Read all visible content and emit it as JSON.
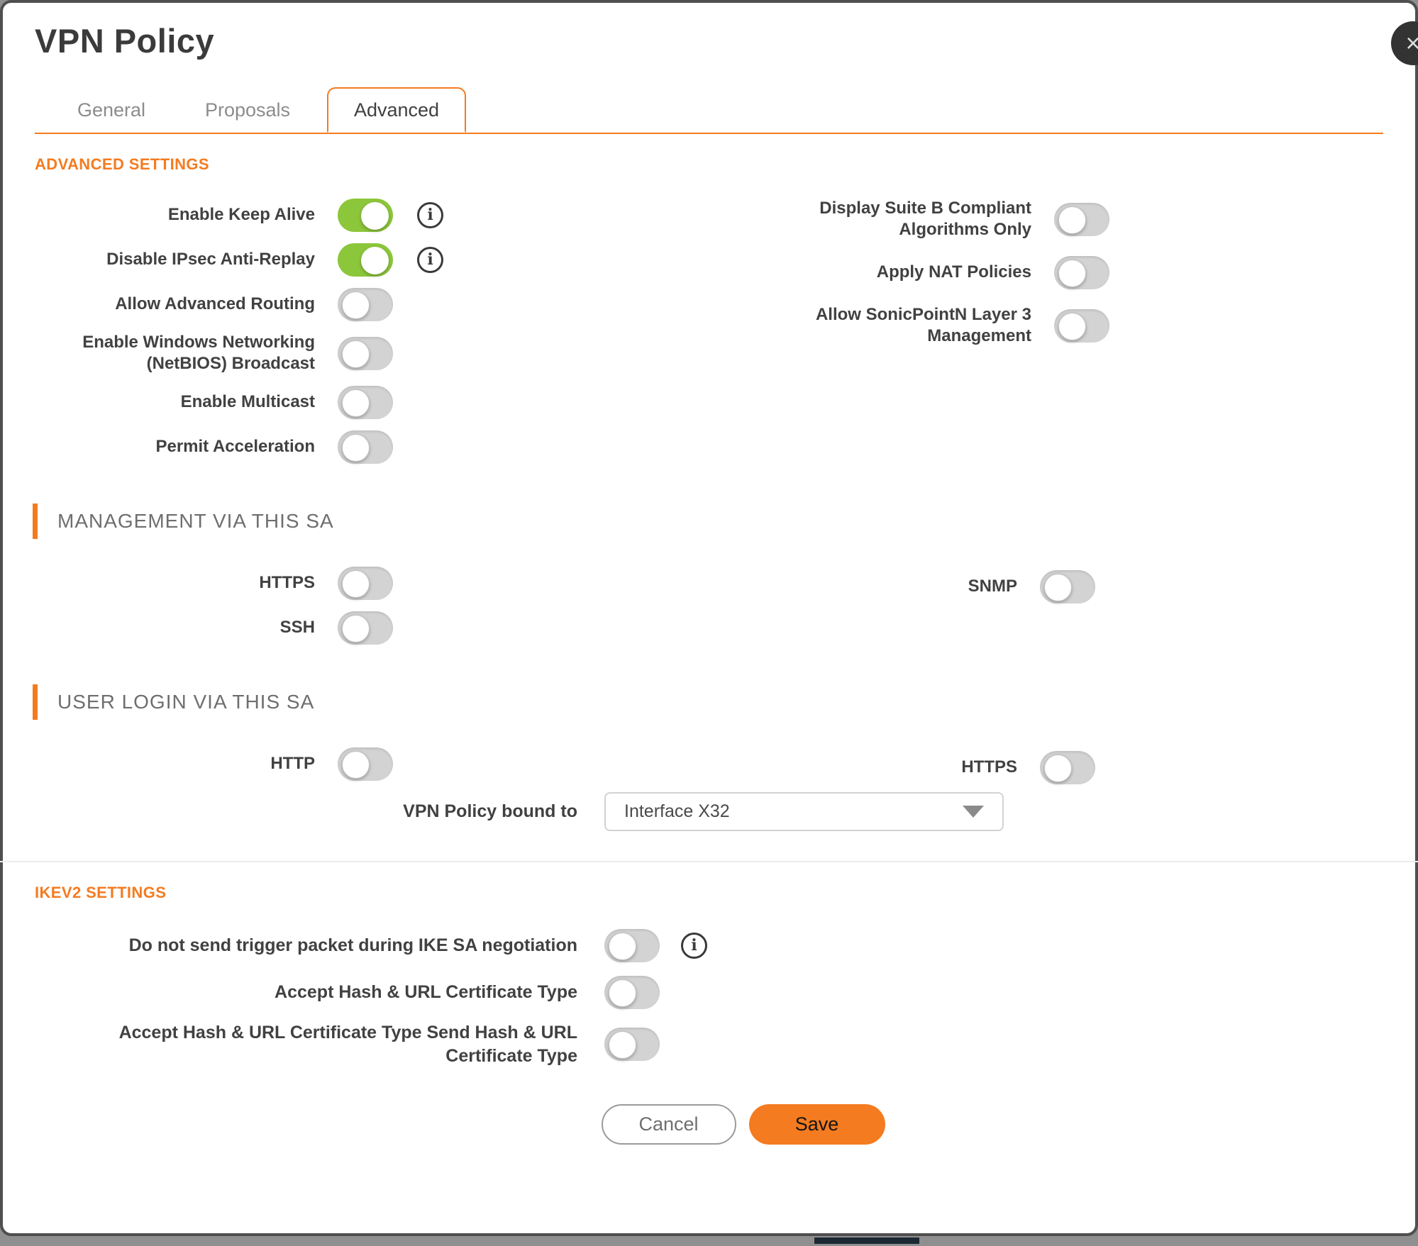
{
  "window": {
    "title": "VPN Policy",
    "close_icon": "×"
  },
  "tabs": {
    "items": [
      {
        "label": "General"
      },
      {
        "label": "Proposals"
      },
      {
        "label": "Advanced"
      }
    ],
    "active": "Advanced"
  },
  "icons": {
    "info": "i"
  },
  "sections": {
    "advanced_settings": {
      "heading": "ADVANCED SETTINGS",
      "left_rows": [
        {
          "label": "Enable Keep Alive",
          "on": true,
          "has_info": true
        },
        {
          "label": "Disable IPsec Anti-Replay",
          "on": true,
          "has_info": true
        },
        {
          "label": "Allow Advanced Routing",
          "on": false
        },
        {
          "label": "Enable Windows Networking (NetBIOS) Broadcast",
          "on": false
        },
        {
          "label": "Enable Multicast",
          "on": false
        },
        {
          "label": "Permit Acceleration",
          "on": false
        }
      ],
      "right_rows": [
        {
          "label": "Display Suite B Compliant Algorithms Only",
          "on": false
        },
        {
          "label": "Apply NAT Policies",
          "on": false
        },
        {
          "label": "Allow SonicPointN Layer 3 Management",
          "on": false
        }
      ]
    },
    "management_via_sa": {
      "heading": "MANAGEMENT VIA THIS SA",
      "left_rows": [
        {
          "label": "HTTPS",
          "on": false
        },
        {
          "label": "SSH",
          "on": false
        }
      ],
      "right_rows": [
        {
          "label": "SNMP",
          "on": false
        }
      ]
    },
    "user_login_via_sa": {
      "heading": "USER LOGIN VIA THIS SA",
      "left_rows": [
        {
          "label": "HTTP",
          "on": false
        }
      ],
      "right_rows": [
        {
          "label": "HTTPS",
          "on": false
        }
      ],
      "bound_to": {
        "label": "VPN Policy bound to",
        "value": "Interface X32"
      }
    },
    "ikev2_settings": {
      "heading": "IKEV2 SETTINGS",
      "rows": [
        {
          "label": "Do not send trigger packet during IKE SA negotiation",
          "on": false,
          "has_info": true
        },
        {
          "label": "Accept Hash & URL Certificate Type",
          "on": false
        },
        {
          "label": "Accept Hash & URL Certificate Type Send Hash & URL Certificate Type",
          "on": false
        }
      ]
    }
  },
  "footer": {
    "cancel_label": "Cancel",
    "save_label": "Save"
  },
  "colors": {
    "accent_orange": "#f47b20",
    "toggle_on_green": "#8cc63b"
  }
}
